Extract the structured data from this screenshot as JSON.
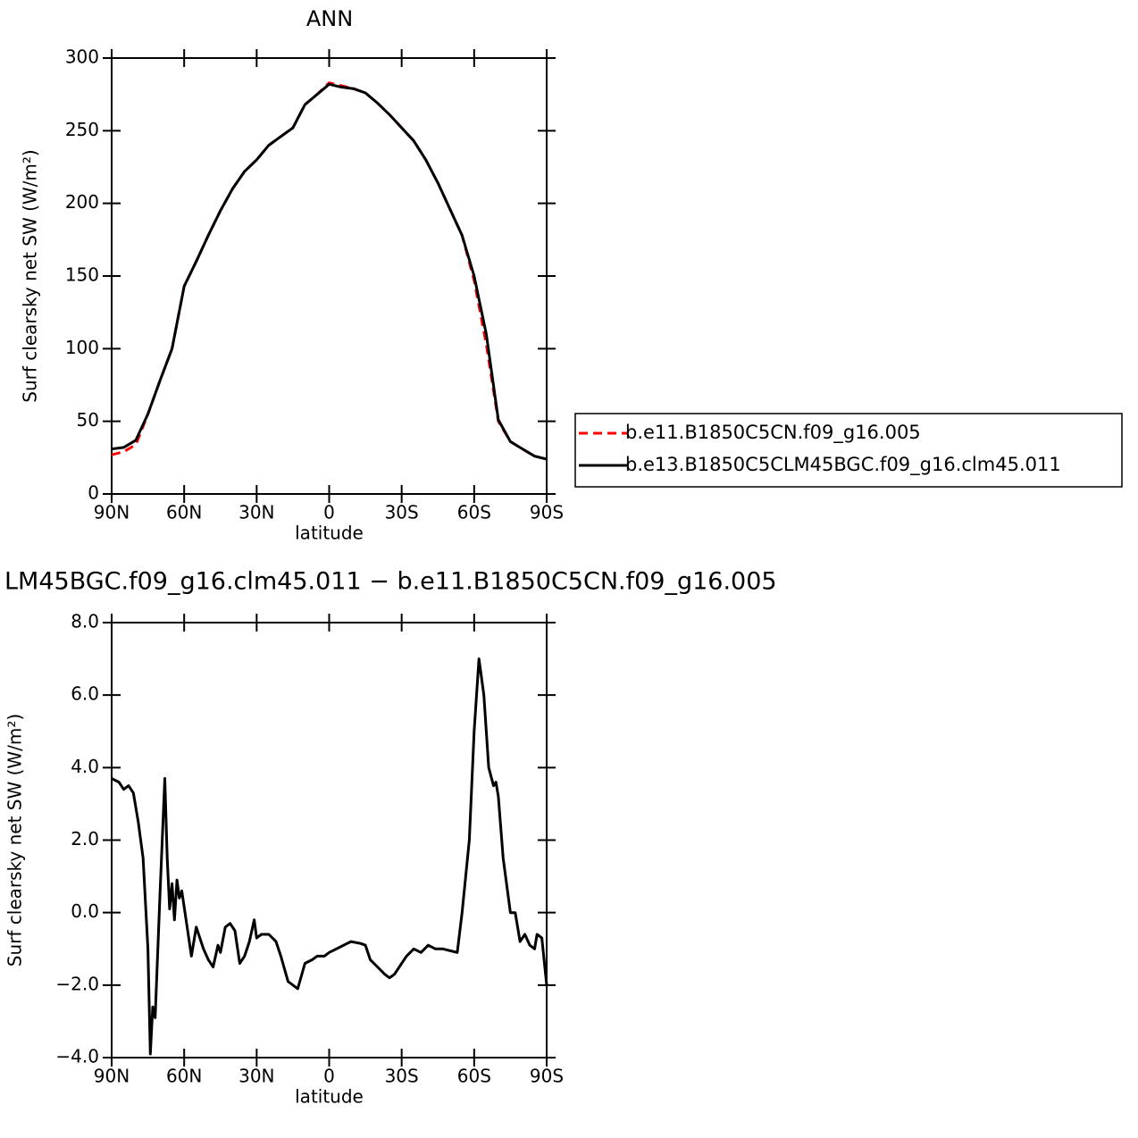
{
  "chart_data": [
    {
      "type": "line",
      "title": "ANN",
      "x_label": "latitude",
      "y_label": "Surf clearsky net SW (W/m²)",
      "x": [
        90,
        85,
        80,
        75,
        70,
        65,
        60,
        55,
        50,
        45,
        40,
        35,
        30,
        25,
        20,
        15,
        10,
        5,
        0,
        -5,
        -10,
        -15,
        -20,
        -25,
        -30,
        -35,
        -40,
        -45,
        -50,
        -55,
        -60,
        -65,
        -70,
        -75,
        -80,
        -85,
        -90
      ],
      "series": [
        {
          "name": "b.e11.B1850C5CN.f09_g16.005",
          "color": "#ff0000",
          "dashed": true,
          "values": [
            27,
            29,
            34,
            55,
            78,
            100,
            143,
            160,
            178,
            195,
            210,
            222,
            230,
            240,
            246,
            252,
            268,
            275,
            283,
            281,
            279,
            276,
            269,
            261,
            252,
            243,
            230,
            214,
            196,
            178,
            147,
            103,
            50,
            36,
            31,
            26,
            24
          ]
        },
        {
          "name": "b.e13.B1850C5CLM45BGC.f09_g16.clm45.011",
          "color": "#000000",
          "dashed": false,
          "values": [
            31,
            32,
            37,
            55,
            78,
            100,
            143,
            160,
            178,
            195,
            210,
            222,
            230,
            240,
            246,
            252,
            268,
            275,
            282,
            280,
            279,
            276,
            269,
            261,
            252,
            243,
            230,
            214,
            196,
            178,
            150,
            110,
            51,
            36,
            31,
            26,
            24
          ]
        }
      ],
      "xlim": [
        90,
        -90
      ],
      "xticks": [
        {
          "value": 90,
          "label": "90N"
        },
        {
          "value": 60,
          "label": "60N"
        },
        {
          "value": 30,
          "label": "30N"
        },
        0,
        {
          "value": -30,
          "label": "30S"
        },
        {
          "value": -60,
          "label": "60S"
        },
        {
          "value": -90,
          "label": "90S"
        }
      ],
      "ylim": [
        0,
        300
      ],
      "yticks": [
        0,
        50,
        100,
        150,
        200,
        250,
        300
      ],
      "legend": "outside right"
    },
    {
      "type": "line",
      "title": "LM45BGC.f09_g16.clm45.011 − b.e11.B1850C5CN.f09_g16.005",
      "x_label": "latitude",
      "y_label": "Surf clearsky net SW (W/m²)",
      "x": [
        90,
        87,
        85,
        83,
        81,
        79,
        77,
        75,
        74,
        73,
        72,
        70,
        68,
        67,
        66,
        65,
        64,
        63,
        62,
        61,
        59,
        57,
        55,
        52,
        50,
        48,
        46,
        45,
        43,
        41,
        39,
        37,
        35,
        33,
        31,
        30,
        28,
        25,
        22,
        20,
        17,
        15,
        13,
        10,
        7,
        5,
        2,
        0,
        -3,
        -6,
        -9,
        -13,
        -15,
        -17,
        -20,
        -23,
        -25,
        -27,
        -30,
        -32,
        -35,
        -38,
        -41,
        -44,
        -47,
        -50,
        -53,
        -55,
        -58,
        -60,
        -62,
        -64,
        -66,
        -68,
        -69,
        -70,
        -72,
        -74,
        -75,
        -77,
        -79,
        -81,
        -83,
        -85,
        -86,
        -88,
        -90
      ],
      "series": [
        {
          "color": "#000000",
          "dashed": false,
          "values": [
            3.7,
            3.6,
            3.4,
            3.5,
            3.3,
            2.5,
            1.5,
            -1.0,
            -3.9,
            -2.6,
            -2.9,
            0.5,
            3.7,
            1.5,
            0.1,
            0.8,
            -0.2,
            0.9,
            0.4,
            0.6,
            -0.3,
            -1.2,
            -0.4,
            -1.0,
            -1.3,
            -1.5,
            -0.9,
            -1.1,
            -0.4,
            -0.3,
            -0.5,
            -1.4,
            -1.2,
            -0.8,
            -0.2,
            -0.7,
            -0.6,
            -0.6,
            -0.8,
            -1.2,
            -1.9,
            -2.0,
            -2.1,
            -1.4,
            -1.3,
            -1.2,
            -1.2,
            -1.1,
            -1.0,
            -0.9,
            -0.8,
            -0.85,
            -0.9,
            -1.3,
            -1.5,
            -1.7,
            -1.8,
            -1.7,
            -1.4,
            -1.2,
            -1.0,
            -1.1,
            -0.9,
            -1.0,
            -1.0,
            -1.05,
            -1.1,
            0.0,
            2.0,
            5.0,
            7.0,
            6.0,
            4.0,
            3.5,
            3.6,
            3.2,
            1.5,
            0.5,
            0.0,
            0.0,
            -0.8,
            -0.6,
            -0.9,
            -1.0,
            -0.6,
            -0.7,
            -2.0
          ]
        }
      ],
      "xlim": [
        90,
        -90
      ],
      "xticks": [
        {
          "value": 90,
          "label": "90N"
        },
        {
          "value": 60,
          "label": "60N"
        },
        {
          "value": 30,
          "label": "30N"
        },
        0,
        {
          "value": -30,
          "label": "30S"
        },
        {
          "value": -60,
          "label": "60S"
        },
        {
          "value": -90,
          "label": "90S"
        }
      ],
      "ylim": [
        -4,
        8
      ],
      "yticks": [
        {
          "value": -4,
          "label": "−4.0"
        },
        {
          "value": -2,
          "label": "−2.0"
        },
        {
          "value": 0,
          "label": "0.0"
        },
        {
          "value": 2,
          "label": "2.0"
        },
        {
          "value": 4,
          "label": "4.0"
        },
        {
          "value": 6,
          "label": "6.0"
        },
        {
          "value": 8,
          "label": "8.0"
        }
      ]
    }
  ]
}
